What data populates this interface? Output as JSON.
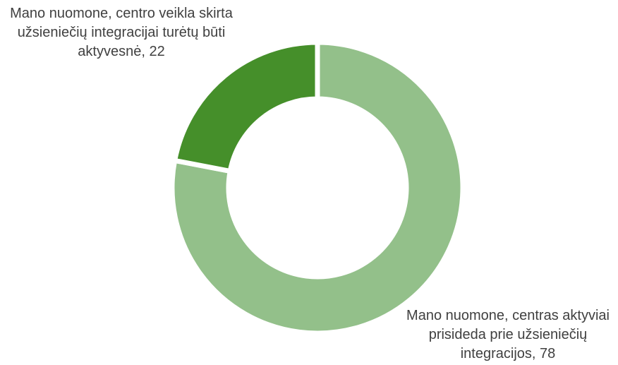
{
  "chart_data": {
    "type": "donut",
    "values": [
      78,
      22
    ],
    "value_labels": [
      "Mano nuomone, centras aktyviai prisideda prie užsieniečių integracijos, 78",
      "Mano nuomone, centro veikla skirta užsieniečių integracijai turėtų būti aktyvesnė, 22"
    ],
    "colors": [
      "#93c08a",
      "#458f2a"
    ]
  }
}
